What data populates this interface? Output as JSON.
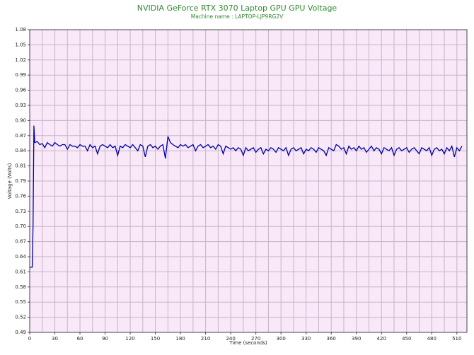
{
  "chart_data": {
    "type": "line",
    "title": "NVIDIA GeForce RTX 3070 Laptop GPU GPU Voltage",
    "subtitle": "Machine name : LAPTOP-LJP9RG2V",
    "x_label": "Time (seconds)",
    "y_label": "Voltage (Volts)",
    "xlim": [
      0,
      522
    ],
    "xticks": [
      0,
      30,
      60,
      90,
      120,
      150,
      180,
      210,
      240,
      270,
      300,
      330,
      360,
      390,
      420,
      450,
      480,
      510
    ],
    "xminorticks": [
      15,
      45,
      75,
      105,
      135,
      165,
      195,
      225,
      255,
      285,
      315,
      345,
      375,
      405,
      435,
      465,
      495
    ],
    "ylim": [
      0.49,
      1.08
    ],
    "yticks": [
      0.49,
      {
        "value": 0.5195,
        "label": "0.52"
      },
      {
        "value": 0.549,
        "label": "0.55"
      },
      {
        "value": 0.5785,
        "label": "0.58"
      },
      {
        "value": 0.608,
        "label": "0.61"
      },
      {
        "value": 0.6375,
        "label": "0.64"
      },
      {
        "value": 0.667,
        "label": "0.67"
      },
      {
        "value": 0.6965,
        "label": "0.70"
      },
      {
        "value": 0.726,
        "label": "0.73"
      },
      {
        "value": 0.7555,
        "label": "0.76"
      },
      {
        "value": 0.785,
        "label": "0.79"
      },
      {
        "value": 0.8145,
        "label": "0.81"
      },
      {
        "value": 0.844,
        "label": "0.84"
      },
      {
        "value": 0.8735,
        "label": "0.87"
      },
      {
        "value": 0.903,
        "label": "0.90"
      },
      {
        "value": 0.9325,
        "label": "0.93"
      },
      {
        "value": 0.962,
        "label": "0.96"
      },
      {
        "value": 0.9915,
        "label": "0.99"
      },
      {
        "value": 1.021,
        "label": "1.02"
      },
      {
        "value": 1.0505,
        "label": "1.05"
      },
      1.08
    ],
    "grid": true,
    "x": [
      0,
      3,
      4,
      5,
      6,
      9,
      12,
      15,
      18,
      21,
      24,
      27,
      30,
      33,
      36,
      39,
      42,
      45,
      48,
      51,
      54,
      57,
      60,
      63,
      66,
      69,
      72,
      75,
      78,
      81,
      84,
      87,
      90,
      93,
      96,
      99,
      102,
      105,
      108,
      111,
      114,
      117,
      120,
      123,
      126,
      129,
      132,
      135,
      138,
      141,
      144,
      147,
      150,
      153,
      156,
      159,
      162,
      165,
      168,
      171,
      174,
      177,
      180,
      183,
      186,
      189,
      192,
      195,
      198,
      201,
      204,
      207,
      210,
      213,
      216,
      219,
      222,
      225,
      228,
      231,
      234,
      237,
      240,
      243,
      246,
      249,
      252,
      255,
      258,
      261,
      264,
      267,
      270,
      273,
      276,
      279,
      282,
      285,
      288,
      291,
      294,
      297,
      300,
      303,
      306,
      309,
      312,
      315,
      318,
      321,
      324,
      327,
      330,
      333,
      336,
      339,
      342,
      345,
      348,
      351,
      354,
      357,
      360,
      363,
      366,
      369,
      372,
      375,
      378,
      381,
      384,
      387,
      390,
      393,
      396,
      399,
      402,
      405,
      408,
      411,
      414,
      417,
      420,
      423,
      426,
      429,
      432,
      435,
      438,
      441,
      444,
      447,
      450,
      453,
      456,
      459,
      462,
      465,
      468,
      471,
      474,
      477,
      480,
      483,
      486,
      489,
      492,
      495,
      498,
      501,
      504,
      507,
      510,
      513,
      516
    ],
    "series": [
      {
        "color": "#0000a8",
        "values": [
          0.617,
          0.617,
          0.7,
          0.893,
          0.86,
          0.862,
          0.856,
          0.858,
          0.85,
          0.86,
          0.856,
          0.853,
          0.86,
          0.856,
          0.853,
          0.856,
          0.856,
          0.847,
          0.856,
          0.853,
          0.853,
          0.85,
          0.856,
          0.853,
          0.853,
          0.844,
          0.856,
          0.85,
          0.853,
          0.838,
          0.853,
          0.856,
          0.853,
          0.85,
          0.856,
          0.85,
          0.853,
          0.835,
          0.853,
          0.85,
          0.856,
          0.853,
          0.85,
          0.856,
          0.85,
          0.844,
          0.856,
          0.853,
          0.832,
          0.853,
          0.856,
          0.85,
          0.853,
          0.847,
          0.853,
          0.856,
          0.829,
          0.872,
          0.86,
          0.856,
          0.853,
          0.85,
          0.856,
          0.853,
          0.856,
          0.85,
          0.853,
          0.856,
          0.844,
          0.853,
          0.856,
          0.85,
          0.853,
          0.856,
          0.85,
          0.853,
          0.847,
          0.856,
          0.853,
          0.838,
          0.853,
          0.85,
          0.847,
          0.85,
          0.844,
          0.85,
          0.847,
          0.835,
          0.85,
          0.844,
          0.847,
          0.85,
          0.841,
          0.847,
          0.85,
          0.838,
          0.847,
          0.844,
          0.85,
          0.847,
          0.841,
          0.85,
          0.847,
          0.844,
          0.85,
          0.835,
          0.847,
          0.85,
          0.844,
          0.847,
          0.85,
          0.838,
          0.847,
          0.844,
          0.85,
          0.847,
          0.841,
          0.85,
          0.847,
          0.844,
          0.835,
          0.85,
          0.847,
          0.844,
          0.856,
          0.853,
          0.847,
          0.85,
          0.838,
          0.853,
          0.847,
          0.85,
          0.844,
          0.853,
          0.847,
          0.85,
          0.841,
          0.847,
          0.853,
          0.844,
          0.85,
          0.847,
          0.838,
          0.85,
          0.847,
          0.844,
          0.85,
          0.835,
          0.847,
          0.85,
          0.844,
          0.847,
          0.85,
          0.841,
          0.847,
          0.85,
          0.844,
          0.838,
          0.85,
          0.847,
          0.844,
          0.85,
          0.835,
          0.847,
          0.85,
          0.844,
          0.847,
          0.838,
          0.85,
          0.844,
          0.853,
          0.832,
          0.85,
          0.844,
          0.853
        ]
      }
    ]
  }
}
